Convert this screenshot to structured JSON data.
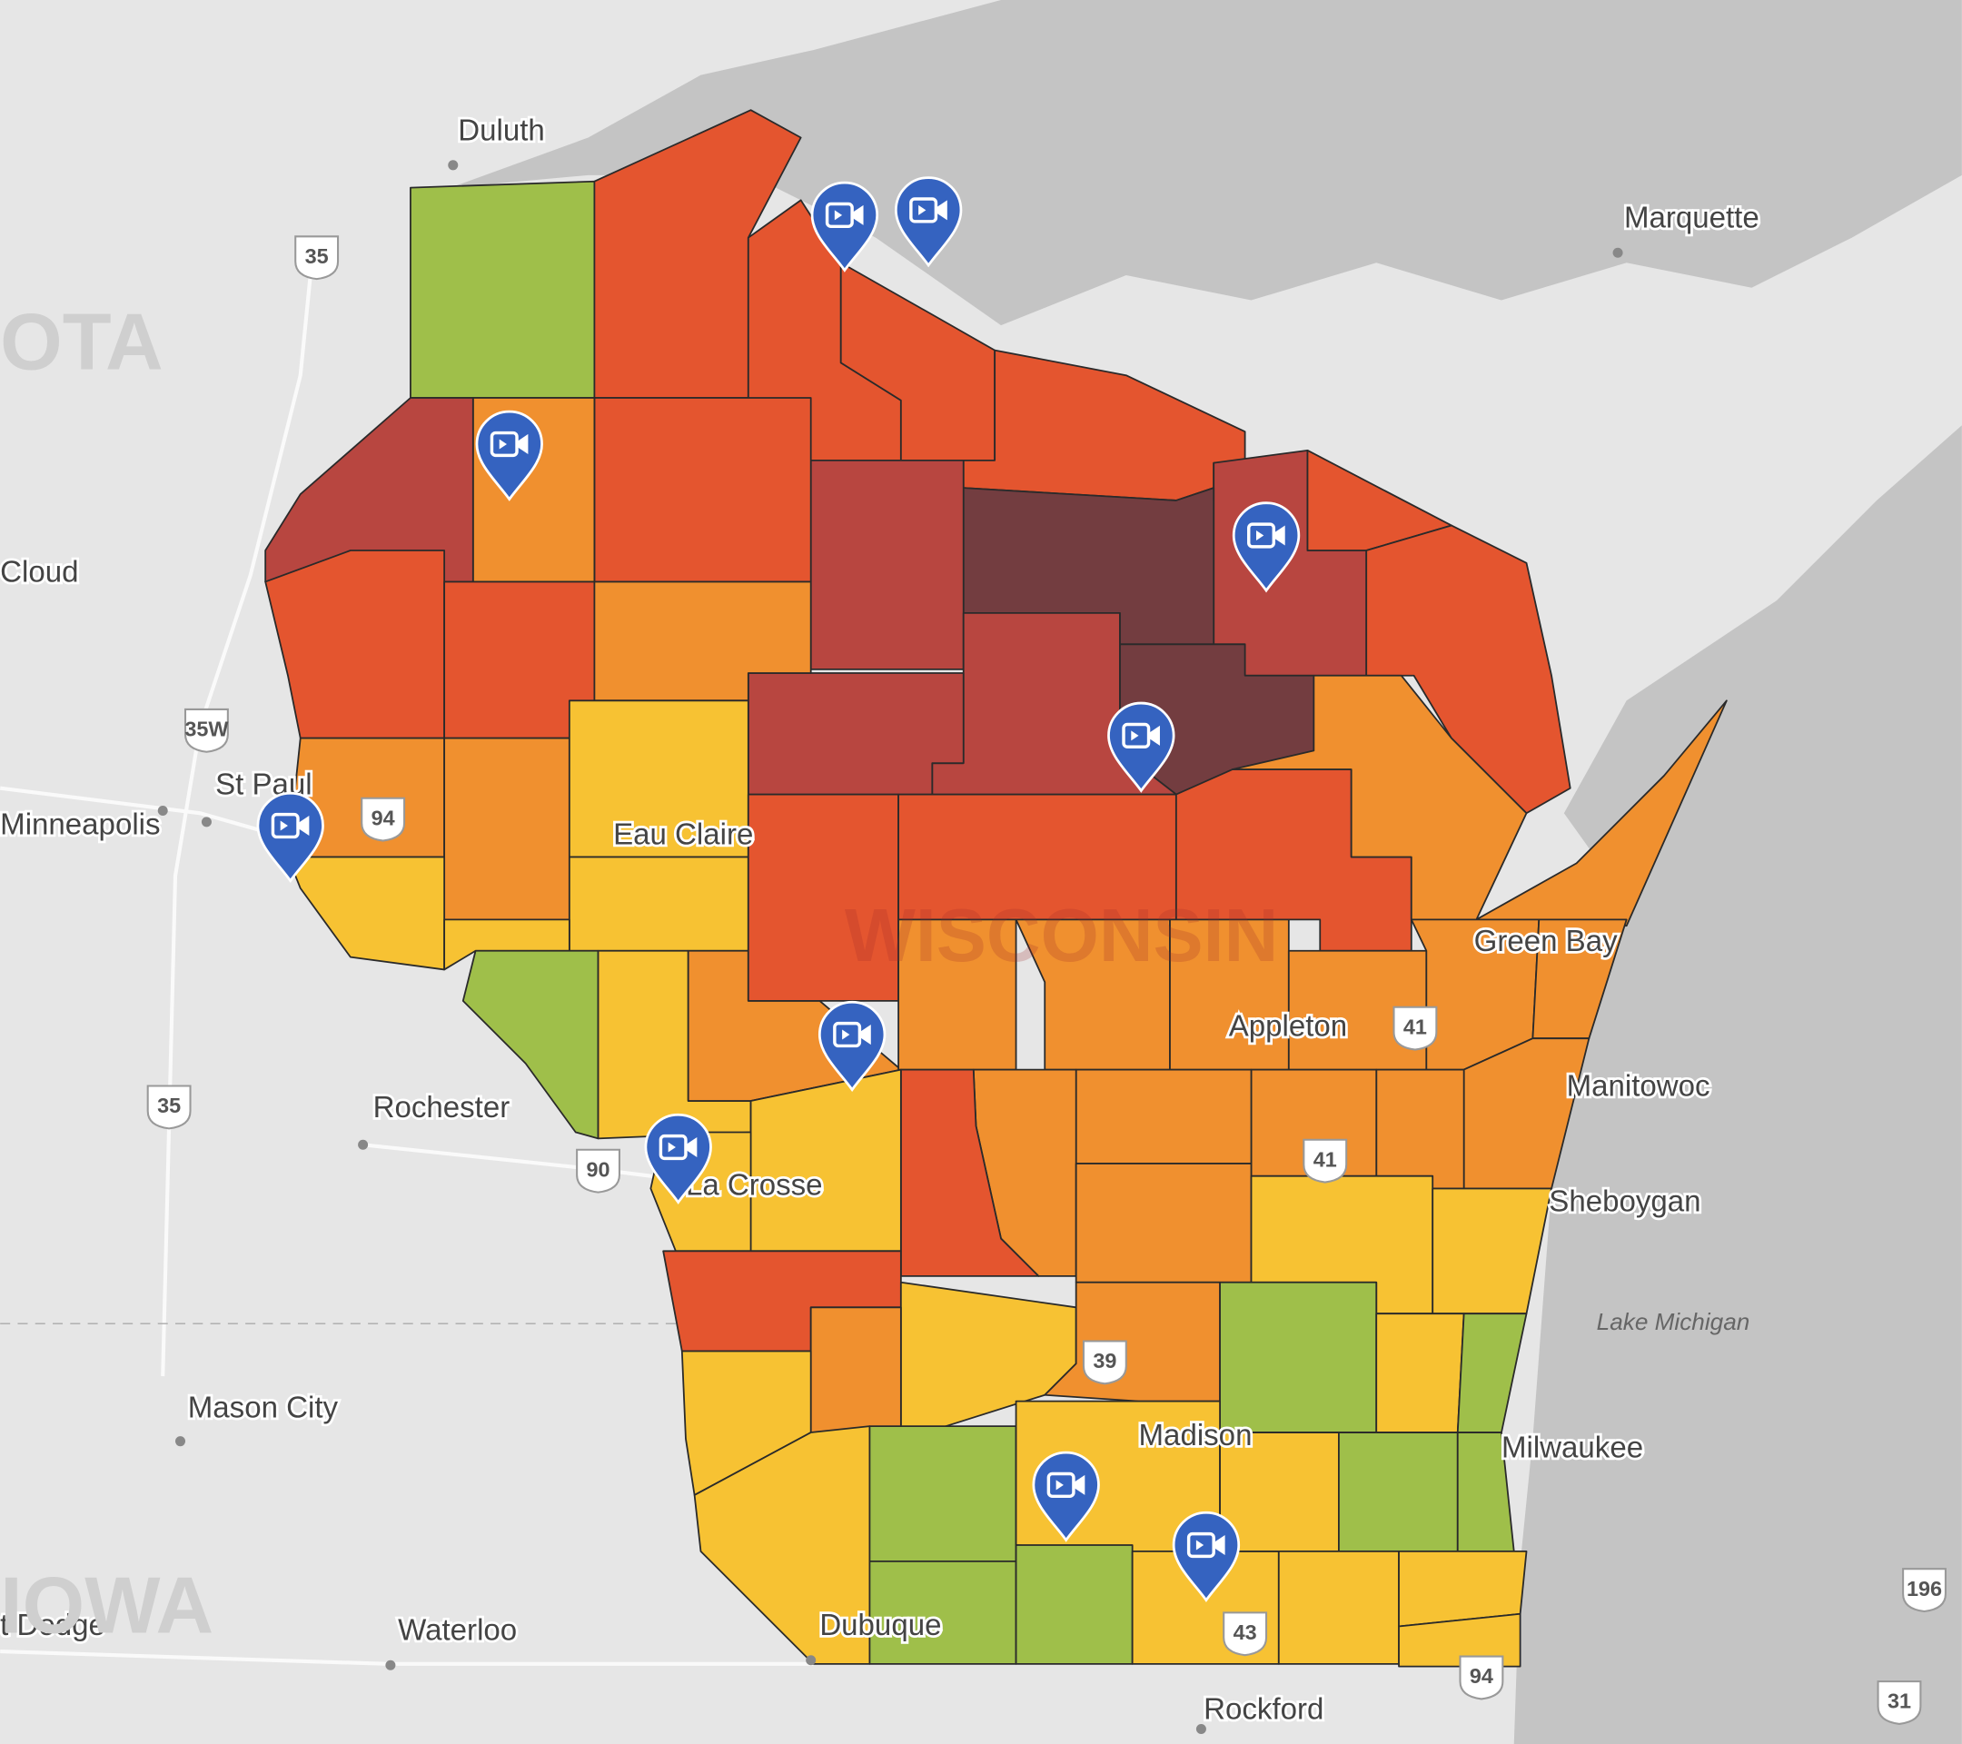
{
  "labels": [
    "Duluth",
    "Marquette",
    "Cloud",
    "St Paul",
    "Minneapolis",
    "Eau Claire",
    "WISCONSIN",
    "Green Bay",
    "Appleton",
    "Manitowoc",
    "Rochester",
    "La Crosse",
    "Sheboygan",
    "Lake Michigan",
    "Mason City",
    "Madison",
    "Milwaukee",
    "t Dodge",
    "Waterloo",
    "Dubuque",
    "Rockford",
    "OTA",
    "IOWA"
  ],
  "shields": [
    "35",
    "35W",
    "94",
    "35",
    "90",
    "41",
    "41",
    "39",
    "43",
    "94",
    "196",
    "31"
  ]
}
